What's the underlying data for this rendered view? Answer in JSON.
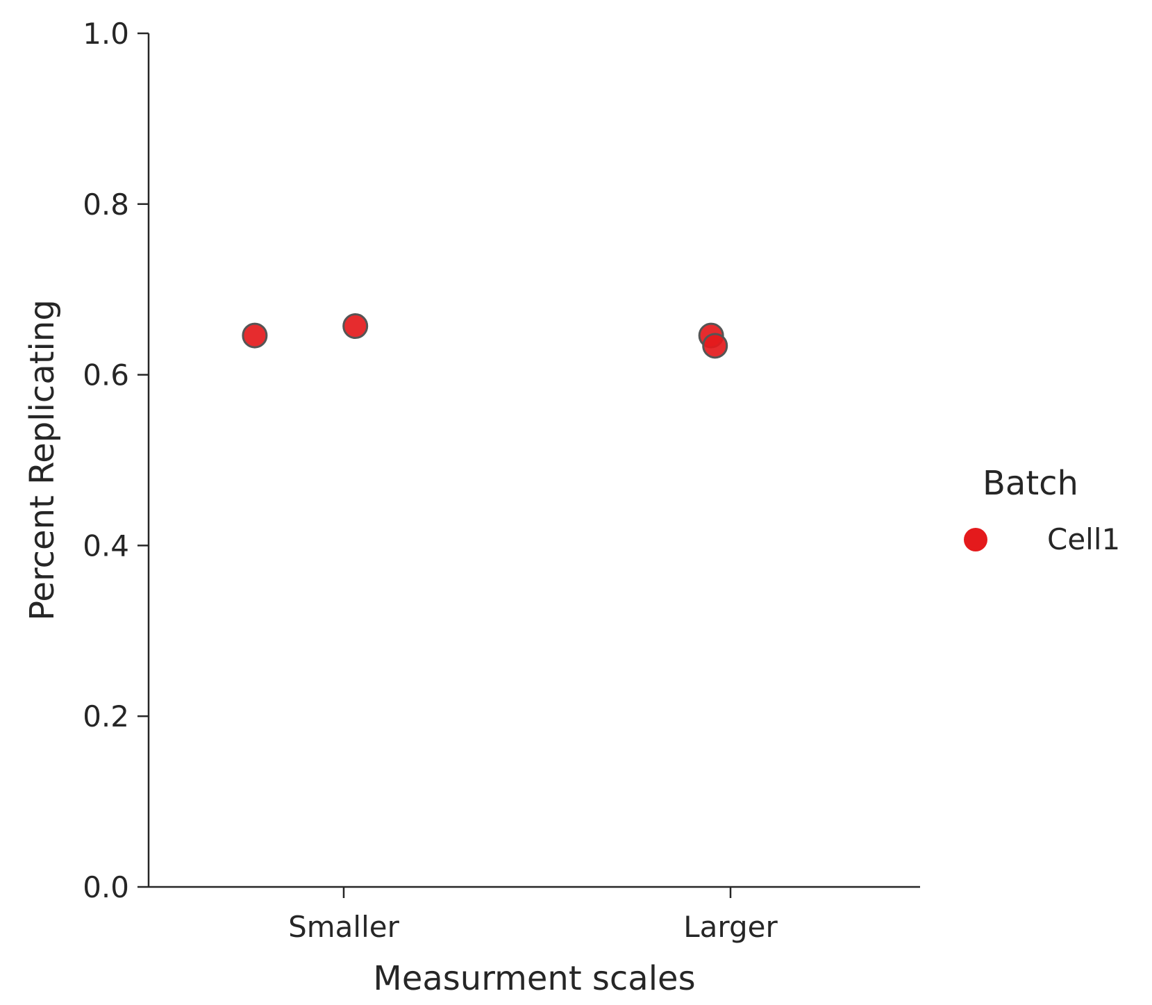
{
  "chart_data": {
    "type": "scatter",
    "title": "",
    "xlabel": "Measurment scales",
    "ylabel": "Percent Replicating",
    "categories": [
      "Smaller",
      "Larger"
    ],
    "ylim": [
      0,
      1
    ],
    "yticks": [
      "0.0",
      "0.2",
      "0.4",
      "0.6",
      "0.8",
      "1.0"
    ],
    "grid": false,
    "legend": {
      "title": "Batch",
      "placement": "right",
      "entries": [
        {
          "name": "Cell1",
          "color": "#e41a1c"
        }
      ]
    },
    "series": [
      {
        "name": "Cell1",
        "color": "#e41a1c",
        "points": [
          {
            "category": "Smaller",
            "jitter": -0.23,
            "y": 0.646
          },
          {
            "category": "Smaller",
            "jitter": 0.03,
            "y": 0.657
          },
          {
            "category": "Larger",
            "jitter": -0.05,
            "y": 0.646
          },
          {
            "category": "Larger",
            "jitter": -0.04,
            "y": 0.634
          }
        ]
      }
    ]
  }
}
